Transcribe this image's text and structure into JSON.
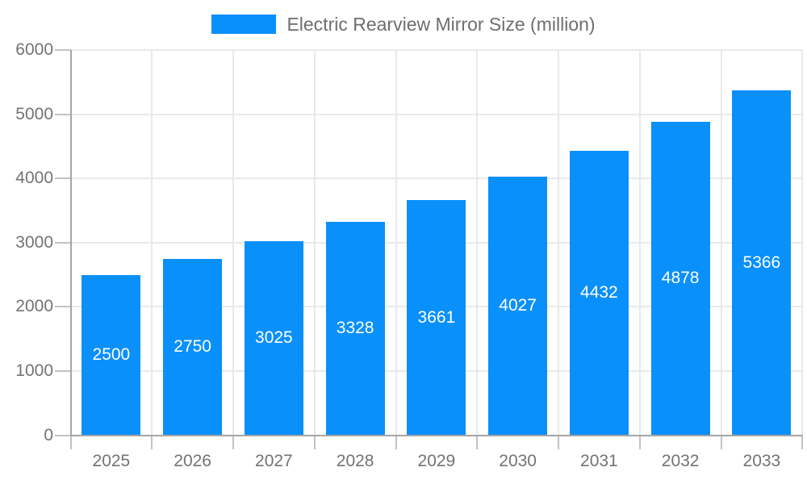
{
  "chart_data": {
    "type": "bar",
    "title": "Electric Rearview Mirror Size (million)",
    "legend_entries": [
      "Electric Rearview Mirror Size (million)"
    ],
    "legend_position": "top-center",
    "categories": [
      "2025",
      "2026",
      "2027",
      "2028",
      "2029",
      "2030",
      "2031",
      "2032",
      "2033"
    ],
    "values": [
      2500,
      2750,
      3025,
      3328,
      3661,
      4027,
      4432,
      4878,
      5366
    ],
    "xlabel": "",
    "ylabel": "",
    "ylim": [
      0,
      6000
    ],
    "yticks": [
      0,
      1000,
      2000,
      3000,
      4000,
      5000,
      6000
    ],
    "grid": "on",
    "value_labels": "inside-center",
    "colors": {
      "bar": "#0a90fb",
      "bar_label": "#ffffff",
      "axis_text": "#737373",
      "legend_text": "#6e6e6e",
      "grid_line": "#e9e9e9",
      "tick_line": "#c2c2c2",
      "axis_line": "#a6a6a6",
      "background": "#ffffff"
    }
  }
}
